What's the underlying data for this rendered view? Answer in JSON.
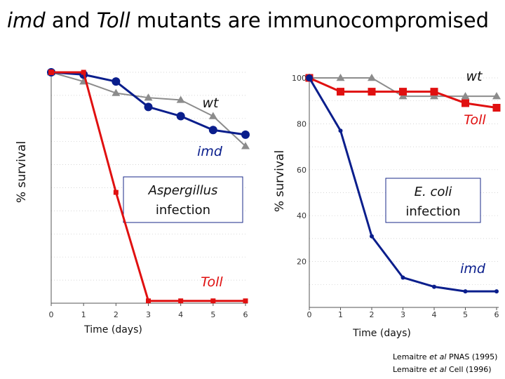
{
  "title": {
    "part1": "imd",
    "part2": " and ",
    "part3": "Toll",
    "part4": " mutants are immunocompromised"
  },
  "colors": {
    "wt": "#8c8c8c",
    "imd": "#0a1e8c",
    "toll": "#e01010"
  },
  "citations": [
    {
      "author": "Lemaitre ",
      "etal": "et al",
      "rest": " PNAS (1995)"
    },
    {
      "author": "Lemaitre ",
      "etal": "et al",
      "rest": " Cell (1996)"
    }
  ],
  "chart_data": [
    {
      "type": "line",
      "xlabel": "Time (days)",
      "ylabel": "% survival",
      "x": [
        0,
        1,
        2,
        3,
        4,
        5,
        6
      ],
      "xticks": [
        "0",
        "1",
        "2",
        "3",
        "4",
        "5",
        "6"
      ],
      "ylim": [
        0,
        100
      ],
      "yticks": [],
      "annotation": [
        "Aspergillus",
        "infection"
      ],
      "series": [
        {
          "name": "wt",
          "values": [
            100,
            96,
            91,
            89,
            88,
            81,
            68
          ]
        },
        {
          "name": "imd",
          "values": [
            100,
            99,
            96,
            85,
            81,
            75,
            73
          ]
        },
        {
          "name": "Toll",
          "values": [
            100,
            100,
            48,
            1,
            1,
            1,
            1
          ]
        }
      ]
    },
    {
      "type": "line",
      "xlabel": "Time (days)",
      "ylabel": "% survival",
      "x": [
        0,
        1,
        2,
        3,
        4,
        5,
        6
      ],
      "xticks": [
        "0",
        "1",
        "2",
        "3",
        "4",
        "5",
        "6"
      ],
      "ylim": [
        0,
        100
      ],
      "yticks": [
        "100",
        "80",
        "60",
        "40",
        "20"
      ],
      "annotation": [
        "E. coli",
        "infection"
      ],
      "series": [
        {
          "name": "wt",
          "values": [
            100,
            100,
            100,
            92,
            92,
            92,
            92
          ]
        },
        {
          "name": "Toll",
          "values": [
            100,
            94,
            94,
            94,
            94,
            89,
            87
          ]
        },
        {
          "name": "imd",
          "values": [
            100,
            77,
            31,
            13,
            9,
            7,
            7
          ]
        }
      ]
    }
  ]
}
